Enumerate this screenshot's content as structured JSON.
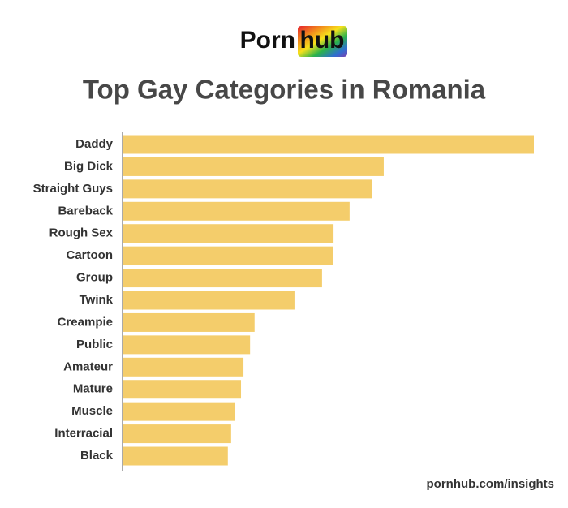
{
  "logo": {
    "left": "Porn",
    "right": "hub"
  },
  "chart_data": {
    "type": "bar",
    "orientation": "horizontal",
    "title": "Top Gay Categories in Romania",
    "categories": [
      "Daddy",
      "Big Dick",
      "Straight Guys",
      "Bareback",
      "Rough Sex",
      "Cartoon",
      "Group",
      "Twink",
      "Creampie",
      "Public",
      "Amateur",
      "Mature",
      "Muscle",
      "Interracial",
      "Black"
    ],
    "values": [
      100,
      63.5,
      60.6,
      55.2,
      51.3,
      51.1,
      48.5,
      41.8,
      32.1,
      31.0,
      29.4,
      28.8,
      27.4,
      26.4,
      25.6
    ],
    "color": "#f4cd6b",
    "xlim": [
      0,
      100
    ]
  },
  "source": "pornhub.com/insights"
}
